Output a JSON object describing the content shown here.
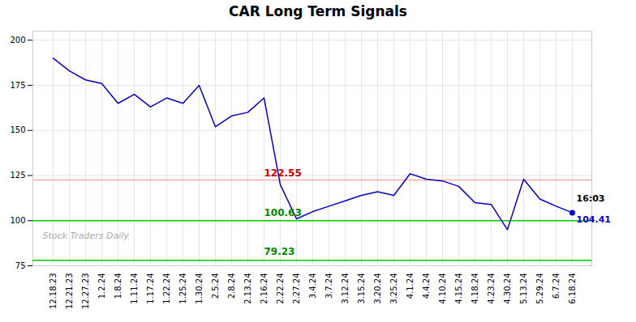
{
  "chart_data": {
    "type": "line",
    "title": "CAR Long Term Signals",
    "categories": [
      "12.18.23",
      "12.21.23",
      "12.27.23",
      "1.2.24",
      "1.8.24",
      "1.11.24",
      "1.17.24",
      "1.22.24",
      "1.25.24",
      "1.30.24",
      "2.5.24",
      "2.8.24",
      "2.13.24",
      "2.16.24",
      "2.22.24",
      "2.27.24",
      "3.4.24",
      "3.7.24",
      "3.12.24",
      "3.15.24",
      "3.20.24",
      "3.25.24",
      "4.1.24",
      "4.4.24",
      "4.10.24",
      "4.15.24",
      "4.18.24",
      "4.23.24",
      "4.30.24",
      "5.13.24",
      "5.29.24",
      "6.7.24",
      "6.18.24"
    ],
    "values": [
      190,
      183,
      178,
      176,
      165,
      170,
      163,
      168,
      165,
      175,
      152,
      158,
      160,
      168,
      120,
      101,
      105,
      108,
      111,
      114,
      116,
      114,
      126,
      123,
      122,
      119,
      110,
      109,
      95,
      123,
      112,
      108,
      104.41
    ],
    "color": "#0000cc",
    "ylim": [
      75,
      205
    ],
    "yticks": [
      75,
      100,
      125,
      150,
      175,
      200
    ],
    "grid": true,
    "reference_lines": [
      {
        "y": 122.55,
        "color": "#ffaaaa"
      },
      {
        "y": 100.0,
        "color": "#00cc00"
      },
      {
        "y": 78.0,
        "color": "#00cc00"
      }
    ],
    "annotations": [
      {
        "text": "122.55",
        "y": 122.55,
        "color": "#cc0000"
      },
      {
        "text": "100.63",
        "y": 100.63,
        "color": "#008800"
      },
      {
        "text": "79.23",
        "y": 79.23,
        "color": "#008800"
      }
    ],
    "highlight": {
      "x": "6.18.24",
      "y": 104.41,
      "color": "#0000cc",
      "label": "104.41",
      "time_label": "16:03",
      "time_color": "#000000"
    },
    "watermark": "Stock Traders Daily"
  }
}
